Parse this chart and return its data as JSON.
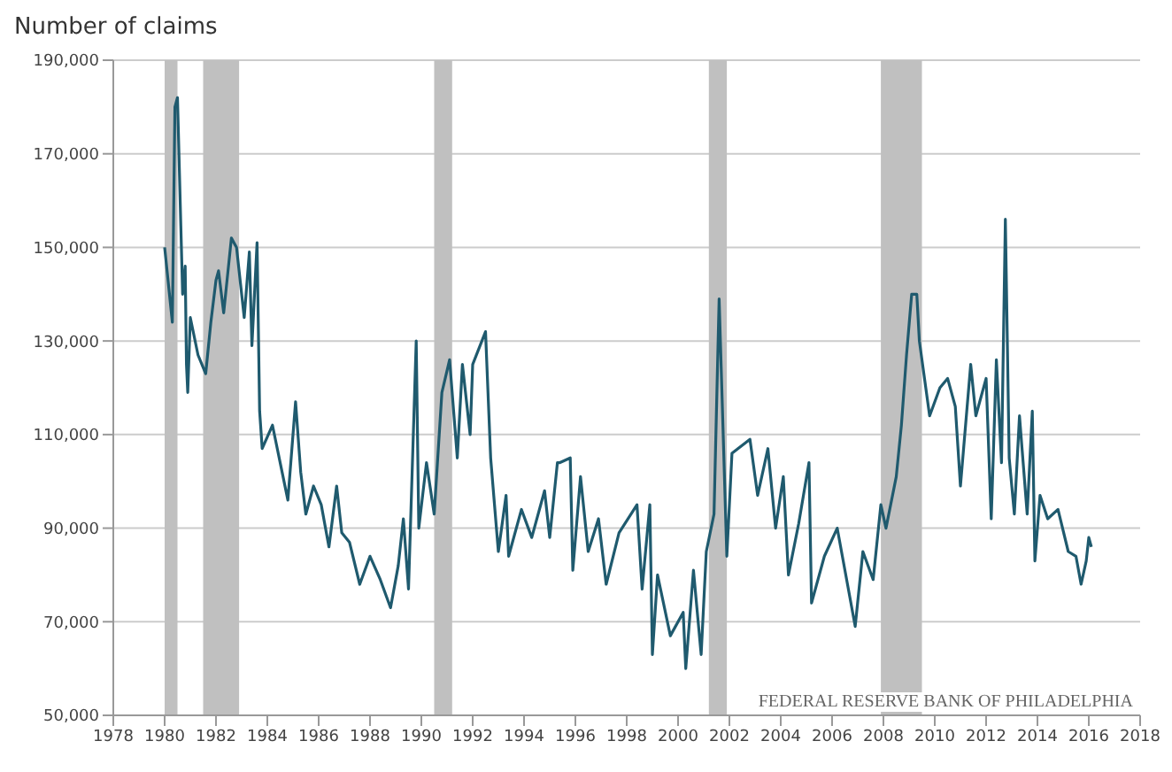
{
  "chart_data": {
    "type": "line",
    "ylabel": "Number of claims",
    "x": [
      1980.0,
      1980.3,
      1980.4,
      1980.5,
      1980.7,
      1980.8,
      1980.85,
      1980.9,
      1981.0,
      1981.3,
      1981.6,
      1981.8,
      1982.0,
      1982.1,
      1982.3,
      1982.6,
      1982.8,
      1983.1,
      1983.3,
      1983.4,
      1983.6,
      1983.7,
      1983.8,
      1984.2,
      1984.5,
      1984.8,
      1985.1,
      1985.3,
      1985.5,
      1985.8,
      1986.1,
      1986.4,
      1986.7,
      1986.9,
      1987.2,
      1987.6,
      1988.0,
      1988.4,
      1988.8,
      1989.1,
      1989.3,
      1989.5,
      1989.8,
      1989.9,
      1990.2,
      1990.5,
      1990.8,
      1991.1,
      1991.4,
      1991.6,
      1991.9,
      1992.0,
      1992.5,
      1992.7,
      1993.0,
      1993.3,
      1993.4,
      1993.9,
      1994.3,
      1994.8,
      1995.0,
      1995.3,
      1995.4,
      1995.8,
      1995.9,
      1996.2,
      1996.5,
      1996.9,
      1997.2,
      1997.7,
      1998.4,
      1998.6,
      1998.9,
      1999.0,
      1999.2,
      1999.7,
      2000.2,
      2000.3,
      2000.6,
      2000.9,
      2001.1,
      2001.4,
      2001.6,
      2001.9,
      2002.1,
      2002.8,
      2003.1,
      2003.5,
      2003.8,
      2004.1,
      2004.3,
      2004.7,
      2005.1,
      2005.2,
      2005.7,
      2006.2,
      2006.4,
      2006.9,
      2007.2,
      2007.6,
      2007.9,
      2008.1,
      2008.5,
      2008.7,
      2008.9,
      2009.1,
      2009.3,
      2009.4,
      2009.8,
      2010.2,
      2010.5,
      2010.8,
      2011.0,
      2011.4,
      2011.6,
      2012.0,
      2012.2,
      2012.4,
      2012.6,
      2012.75,
      2012.9,
      2013.1,
      2013.3,
      2013.6,
      2013.8,
      2013.9,
      2014.1,
      2014.4,
      2014.8,
      2015.2,
      2015.5,
      2015.7,
      2015.9,
      2016.0,
      2016.1
    ],
    "series": [
      {
        "color": "#1f5a6e",
        "values": [
          150000,
          134000,
          180000,
          182000,
          140000,
          146000,
          125000,
          119000,
          135000,
          127000,
          123000,
          134000,
          143000,
          145000,
          136000,
          152000,
          150000,
          135000,
          149000,
          129000,
          151000,
          115000,
          107000,
          112000,
          104000,
          96000,
          117000,
          102000,
          93000,
          99000,
          95000,
          86000,
          99000,
          89000,
          87000,
          78000,
          84000,
          79000,
          73000,
          82000,
          92000,
          77000,
          130000,
          90000,
          104000,
          93000,
          119000,
          126000,
          105000,
          125000,
          110000,
          125000,
          132000,
          105000,
          85000,
          97000,
          84000,
          94000,
          88000,
          98000,
          88000,
          104000,
          104000,
          105000,
          81000,
          101000,
          85000,
          92000,
          78000,
          89000,
          95000,
          77000,
          95000,
          63000,
          80000,
          67000,
          72000,
          60000,
          81000,
          63000,
          85000,
          93000,
          139000,
          84000,
          106000,
          109000,
          97000,
          107000,
          90000,
          101000,
          80000,
          91000,
          104000,
          74000,
          84000,
          90000,
          84000,
          69000,
          85000,
          79000,
          95000,
          90000,
          101000,
          112000,
          127000,
          140000,
          140000,
          130000,
          114000,
          120000,
          122000,
          116000,
          99000,
          125000,
          114000,
          122000,
          92000,
          126000,
          104000,
          156000,
          105000,
          93000,
          114000,
          93000,
          115000,
          83000,
          97000,
          92000,
          94000,
          85000,
          84000,
          78000,
          83000,
          88000,
          86000
        ]
      }
    ],
    "xlim": [
      1978,
      2018
    ],
    "xticks": [
      1978,
      1980,
      1982,
      1984,
      1986,
      1988,
      1990,
      1992,
      1994,
      1996,
      1998,
      2000,
      2002,
      2004,
      2006,
      2008,
      2010,
      2012,
      2014,
      2016,
      2018
    ],
    "ylim": [
      50000,
      190000
    ],
    "yticks": [
      {
        "value": 50000,
        "label": "50,000"
      },
      {
        "value": 70000,
        "label": "70,000"
      },
      {
        "value": 90000,
        "label": "90,000"
      },
      {
        "value": 110000,
        "label": "110,000"
      },
      {
        "value": 130000,
        "label": "130,000"
      },
      {
        "value": 150000,
        "label": "150,000"
      },
      {
        "value": 170000,
        "label": "170,000"
      },
      {
        "value": 190000,
        "label": "190,000"
      }
    ],
    "grid": "y",
    "marker": "none",
    "line_style": "solid",
    "bands": [
      {
        "axis": "x",
        "from": 1980.0,
        "to": 1980.5,
        "color": "#c0c0c0"
      },
      {
        "axis": "x",
        "from": 1981.5,
        "to": 1982.9,
        "color": "#c0c0c0"
      },
      {
        "axis": "x",
        "from": 1990.5,
        "to": 1991.2,
        "color": "#c0c0c0"
      },
      {
        "axis": "x",
        "from": 2001.2,
        "to": 2001.9,
        "color": "#c0c0c0"
      },
      {
        "axis": "x",
        "from": 2007.9,
        "to": 2009.5,
        "color": "#c0c0c0"
      }
    ],
    "annotations": [
      "FEDERAL RESERVE BANK OF PHILADELPHIA"
    ]
  }
}
